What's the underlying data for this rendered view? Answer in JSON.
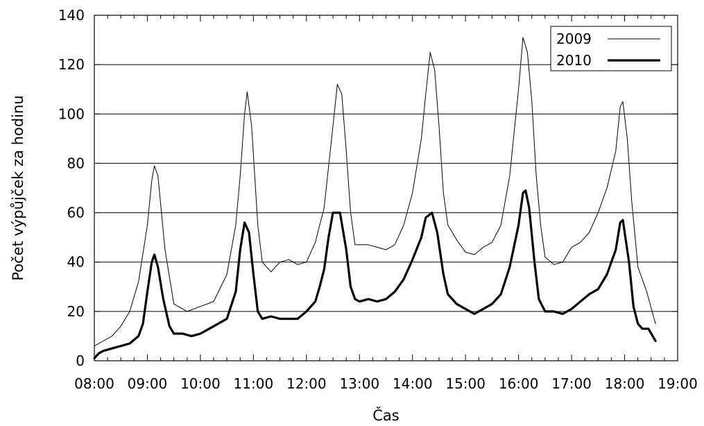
{
  "chart_data": {
    "type": "line",
    "title": "",
    "xlabel": "Čas",
    "ylabel": "Počet výpůjček za hodinu",
    "xlim": [
      "08:00",
      "19:00"
    ],
    "ylim": [
      0,
      140
    ],
    "x_ticks": [
      "08:00",
      "09:00",
      "10:00",
      "11:00",
      "12:00",
      "13:00",
      "14:00",
      "15:00",
      "16:00",
      "17:00",
      "18:00",
      "19:00"
    ],
    "y_ticks": [
      0,
      20,
      40,
      60,
      80,
      100,
      120,
      140
    ],
    "grid": "horizontal",
    "legend_position": "top-right",
    "series": [
      {
        "name": "2009",
        "line": "thin",
        "color": "#000000",
        "points": [
          [
            "08:00",
            6
          ],
          [
            "08:10",
            8
          ],
          [
            "08:20",
            10
          ],
          [
            "08:30",
            14
          ],
          [
            "08:40",
            20
          ],
          [
            "08:50",
            32
          ],
          [
            "09:00",
            55
          ],
          [
            "09:05",
            73
          ],
          [
            "09:08",
            79
          ],
          [
            "09:12",
            75
          ],
          [
            "09:20",
            45
          ],
          [
            "09:30",
            23
          ],
          [
            "09:45",
            20
          ],
          [
            "10:00",
            22
          ],
          [
            "10:15",
            24
          ],
          [
            "10:30",
            35
          ],
          [
            "10:40",
            55
          ],
          [
            "10:45",
            75
          ],
          [
            "10:50",
            100
          ],
          [
            "10:53",
            109
          ],
          [
            "10:58",
            95
          ],
          [
            "11:05",
            55
          ],
          [
            "11:10",
            40
          ],
          [
            "11:20",
            36
          ],
          [
            "11:30",
            40
          ],
          [
            "11:40",
            41
          ],
          [
            "11:50",
            39
          ],
          [
            "12:00",
            40
          ],
          [
            "12:10",
            48
          ],
          [
            "12:20",
            62
          ],
          [
            "12:30",
            95
          ],
          [
            "12:35",
            112
          ],
          [
            "12:40",
            108
          ],
          [
            "12:45",
            85
          ],
          [
            "12:50",
            60
          ],
          [
            "12:55",
            47
          ],
          [
            "13:00",
            47
          ],
          [
            "13:10",
            47
          ],
          [
            "13:20",
            46
          ],
          [
            "13:30",
            45
          ],
          [
            "13:40",
            47
          ],
          [
            "13:50",
            55
          ],
          [
            "14:00",
            68
          ],
          [
            "14:10",
            90
          ],
          [
            "14:15",
            108
          ],
          [
            "14:20",
            125
          ],
          [
            "14:25",
            118
          ],
          [
            "14:30",
            95
          ],
          [
            "14:35",
            68
          ],
          [
            "14:40",
            55
          ],
          [
            "14:50",
            49
          ],
          [
            "15:00",
            44
          ],
          [
            "15:10",
            43
          ],
          [
            "15:20",
            46
          ],
          [
            "15:30",
            48
          ],
          [
            "15:40",
            55
          ],
          [
            "15:50",
            75
          ],
          [
            "16:00",
            110
          ],
          [
            "16:05",
            131
          ],
          [
            "16:10",
            125
          ],
          [
            "16:15",
            105
          ],
          [
            "16:20",
            75
          ],
          [
            "16:25",
            55
          ],
          [
            "16:30",
            42
          ],
          [
            "16:40",
            39
          ],
          [
            "16:50",
            40
          ],
          [
            "17:00",
            46
          ],
          [
            "17:10",
            48
          ],
          [
            "17:20",
            52
          ],
          [
            "17:30",
            60
          ],
          [
            "17:40",
            70
          ],
          [
            "17:50",
            85
          ],
          [
            "17:55",
            103
          ],
          [
            "17:58",
            105
          ],
          [
            "18:03",
            90
          ],
          [
            "18:08",
            65
          ],
          [
            "18:15",
            38
          ],
          [
            "18:25",
            28
          ],
          [
            "18:35",
            15
          ]
        ]
      },
      {
        "name": "2010",
        "line": "thick",
        "color": "#000000",
        "points": [
          [
            "08:00",
            1
          ],
          [
            "08:05",
            3
          ],
          [
            "08:10",
            4
          ],
          [
            "08:20",
            5
          ],
          [
            "08:30",
            6
          ],
          [
            "08:40",
            7
          ],
          [
            "08:50",
            10
          ],
          [
            "08:55",
            15
          ],
          [
            "09:00",
            28
          ],
          [
            "09:05",
            40
          ],
          [
            "09:08",
            43
          ],
          [
            "09:12",
            38
          ],
          [
            "09:18",
            25
          ],
          [
            "09:25",
            14
          ],
          [
            "09:30",
            11
          ],
          [
            "09:40",
            11
          ],
          [
            "09:50",
            10
          ],
          [
            "10:00",
            11
          ],
          [
            "10:10",
            13
          ],
          [
            "10:20",
            15
          ],
          [
            "10:30",
            17
          ],
          [
            "10:40",
            28
          ],
          [
            "10:45",
            45
          ],
          [
            "10:50",
            56
          ],
          [
            "10:55",
            52
          ],
          [
            "11:00",
            35
          ],
          [
            "11:05",
            20
          ],
          [
            "11:10",
            17
          ],
          [
            "11:20",
            18
          ],
          [
            "11:30",
            17
          ],
          [
            "11:40",
            17
          ],
          [
            "11:50",
            17
          ],
          [
            "12:00",
            20
          ],
          [
            "12:10",
            24
          ],
          [
            "12:15",
            30
          ],
          [
            "12:20",
            37
          ],
          [
            "12:25",
            50
          ],
          [
            "12:30",
            60
          ],
          [
            "12:38",
            60
          ],
          [
            "12:45",
            45
          ],
          [
            "12:50",
            30
          ],
          [
            "12:55",
            25
          ],
          [
            "13:00",
            24
          ],
          [
            "13:10",
            25
          ],
          [
            "13:20",
            24
          ],
          [
            "13:30",
            25
          ],
          [
            "13:40",
            28
          ],
          [
            "13:50",
            33
          ],
          [
            "14:00",
            41
          ],
          [
            "14:10",
            50
          ],
          [
            "14:15",
            58
          ],
          [
            "14:22",
            60
          ],
          [
            "14:28",
            52
          ],
          [
            "14:35",
            35
          ],
          [
            "14:40",
            27
          ],
          [
            "14:50",
            23
          ],
          [
            "15:00",
            21
          ],
          [
            "15:10",
            19
          ],
          [
            "15:20",
            21
          ],
          [
            "15:30",
            23
          ],
          [
            "15:40",
            27
          ],
          [
            "15:50",
            38
          ],
          [
            "16:00",
            55
          ],
          [
            "16:05",
            68
          ],
          [
            "16:08",
            69
          ],
          [
            "16:12",
            62
          ],
          [
            "16:18",
            40
          ],
          [
            "16:23",
            25
          ],
          [
            "16:30",
            20
          ],
          [
            "16:40",
            20
          ],
          [
            "16:50",
            19
          ],
          [
            "17:00",
            21
          ],
          [
            "17:10",
            24
          ],
          [
            "17:20",
            27
          ],
          [
            "17:30",
            29
          ],
          [
            "17:40",
            35
          ],
          [
            "17:50",
            45
          ],
          [
            "17:55",
            56
          ],
          [
            "17:58",
            57
          ],
          [
            "18:05",
            40
          ],
          [
            "18:10",
            22
          ],
          [
            "18:15",
            15
          ],
          [
            "18:20",
            13
          ],
          [
            "18:27",
            13
          ],
          [
            "18:35",
            8
          ]
        ]
      }
    ]
  }
}
